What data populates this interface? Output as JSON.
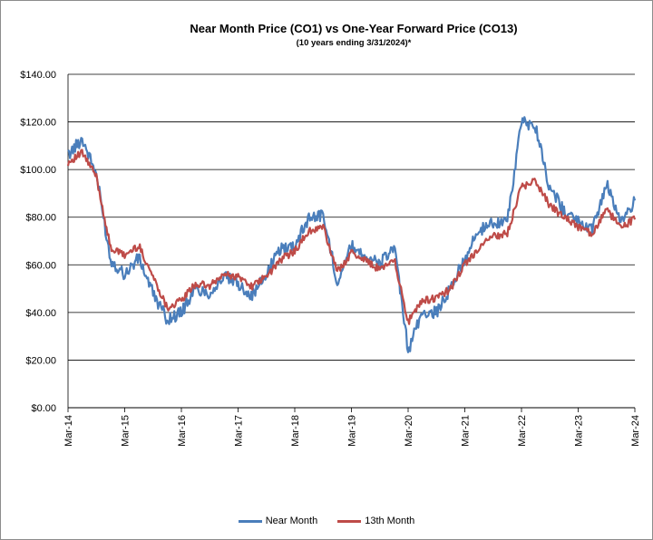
{
  "chart_data": {
    "type": "line",
    "title": "Near Month Price (CO1) vs One-Year Forward Price  (CO13)",
    "subtitle": "(10 years ending  3/31/2024)*",
    "ylim": [
      0,
      140
    ],
    "yticks": [
      "$0.00",
      "$20.00",
      "$40.00",
      "$60.00",
      "$80.00",
      "$100.00",
      "$120.00",
      "$140.00"
    ],
    "ytick_values": [
      0,
      20,
      40,
      60,
      80,
      100,
      120,
      140
    ],
    "xticks": [
      "Mar-14",
      "Mar-15",
      "Mar-16",
      "Mar-17",
      "Mar-18",
      "Mar-19",
      "Mar-20",
      "Mar-21",
      "Mar-22",
      "Mar-23",
      "Mar-24"
    ],
    "xlim": [
      "2014-03",
      "2024-03"
    ],
    "grid": "horizontal",
    "legend_position": "bottom",
    "x": [
      "2014-03",
      "2014-06",
      "2014-09",
      "2014-12",
      "2015-03",
      "2015-06",
      "2015-09",
      "2015-12",
      "2016-03",
      "2016-06",
      "2016-09",
      "2016-12",
      "2017-03",
      "2017-06",
      "2017-09",
      "2017-12",
      "2018-03",
      "2018-06",
      "2018-09",
      "2018-12",
      "2019-03",
      "2019-06",
      "2019-09",
      "2019-12",
      "2020-03",
      "2020-06",
      "2020-09",
      "2020-12",
      "2021-03",
      "2021-06",
      "2021-09",
      "2021-12",
      "2022-03",
      "2022-06",
      "2022-09",
      "2022-12",
      "2023-03",
      "2023-06",
      "2023-09",
      "2023-12",
      "2024-03"
    ],
    "series": [
      {
        "name": "Near Month",
        "color": "#4a7ebb",
        "values": [
          106,
          113,
          98,
          62,
          56,
          63,
          48,
          37,
          40,
          50,
          48,
          55,
          52,
          47,
          56,
          67,
          68,
          80,
          81,
          53,
          68,
          64,
          60,
          68,
          24,
          40,
          40,
          50,
          63,
          74,
          78,
          78,
          120,
          118,
          92,
          83,
          78,
          75,
          94,
          78,
          87
        ]
      },
      {
        "name": "13th Month",
        "color": "#be4b48",
        "values": [
          103,
          107,
          97,
          67,
          64,
          68,
          55,
          42,
          45,
          52,
          51,
          56,
          55,
          51,
          55,
          62,
          66,
          74,
          76,
          57,
          65,
          62,
          58,
          63,
          36,
          45,
          46,
          50,
          60,
          67,
          72,
          73,
          93,
          95,
          85,
          80,
          76,
          73,
          83,
          76,
          79
        ]
      }
    ]
  }
}
